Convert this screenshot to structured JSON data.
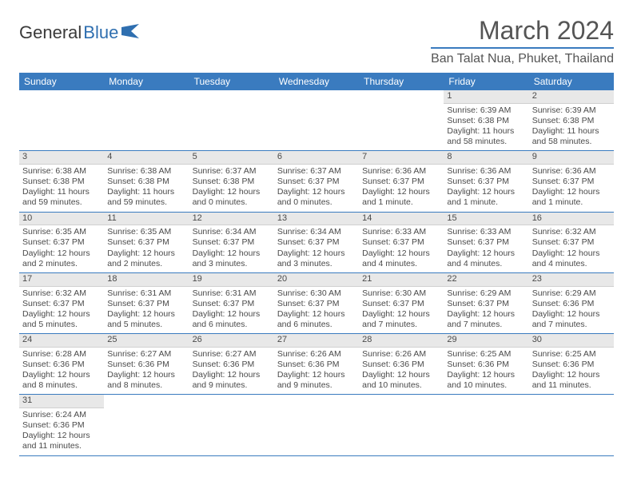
{
  "branding": {
    "word1": "General",
    "word2": "Blue"
  },
  "header": {
    "month_title": "March 2024",
    "location": "Ban Talat Nua, Phuket, Thailand"
  },
  "colors": {
    "header_bar": "#3a7bbf",
    "day_number_bg": "#e8e8e8",
    "text": "#4a4a4a",
    "row_border": "#3a7bbf"
  },
  "weekdays": [
    "Sunday",
    "Monday",
    "Tuesday",
    "Wednesday",
    "Thursday",
    "Friday",
    "Saturday"
  ],
  "weeks": [
    [
      {
        "day": "",
        "sunrise": "",
        "sunset": "",
        "daylight": ""
      },
      {
        "day": "",
        "sunrise": "",
        "sunset": "",
        "daylight": ""
      },
      {
        "day": "",
        "sunrise": "",
        "sunset": "",
        "daylight": ""
      },
      {
        "day": "",
        "sunrise": "",
        "sunset": "",
        "daylight": ""
      },
      {
        "day": "",
        "sunrise": "",
        "sunset": "",
        "daylight": ""
      },
      {
        "day": "1",
        "sunrise": "Sunrise: 6:39 AM",
        "sunset": "Sunset: 6:38 PM",
        "daylight": "Daylight: 11 hours and 58 minutes."
      },
      {
        "day": "2",
        "sunrise": "Sunrise: 6:39 AM",
        "sunset": "Sunset: 6:38 PM",
        "daylight": "Daylight: 11 hours and 58 minutes."
      }
    ],
    [
      {
        "day": "3",
        "sunrise": "Sunrise: 6:38 AM",
        "sunset": "Sunset: 6:38 PM",
        "daylight": "Daylight: 11 hours and 59 minutes."
      },
      {
        "day": "4",
        "sunrise": "Sunrise: 6:38 AM",
        "sunset": "Sunset: 6:38 PM",
        "daylight": "Daylight: 11 hours and 59 minutes."
      },
      {
        "day": "5",
        "sunrise": "Sunrise: 6:37 AM",
        "sunset": "Sunset: 6:38 PM",
        "daylight": "Daylight: 12 hours and 0 minutes."
      },
      {
        "day": "6",
        "sunrise": "Sunrise: 6:37 AM",
        "sunset": "Sunset: 6:37 PM",
        "daylight": "Daylight: 12 hours and 0 minutes."
      },
      {
        "day": "7",
        "sunrise": "Sunrise: 6:36 AM",
        "sunset": "Sunset: 6:37 PM",
        "daylight": "Daylight: 12 hours and 1 minute."
      },
      {
        "day": "8",
        "sunrise": "Sunrise: 6:36 AM",
        "sunset": "Sunset: 6:37 PM",
        "daylight": "Daylight: 12 hours and 1 minute."
      },
      {
        "day": "9",
        "sunrise": "Sunrise: 6:36 AM",
        "sunset": "Sunset: 6:37 PM",
        "daylight": "Daylight: 12 hours and 1 minute."
      }
    ],
    [
      {
        "day": "10",
        "sunrise": "Sunrise: 6:35 AM",
        "sunset": "Sunset: 6:37 PM",
        "daylight": "Daylight: 12 hours and 2 minutes."
      },
      {
        "day": "11",
        "sunrise": "Sunrise: 6:35 AM",
        "sunset": "Sunset: 6:37 PM",
        "daylight": "Daylight: 12 hours and 2 minutes."
      },
      {
        "day": "12",
        "sunrise": "Sunrise: 6:34 AM",
        "sunset": "Sunset: 6:37 PM",
        "daylight": "Daylight: 12 hours and 3 minutes."
      },
      {
        "day": "13",
        "sunrise": "Sunrise: 6:34 AM",
        "sunset": "Sunset: 6:37 PM",
        "daylight": "Daylight: 12 hours and 3 minutes."
      },
      {
        "day": "14",
        "sunrise": "Sunrise: 6:33 AM",
        "sunset": "Sunset: 6:37 PM",
        "daylight": "Daylight: 12 hours and 4 minutes."
      },
      {
        "day": "15",
        "sunrise": "Sunrise: 6:33 AM",
        "sunset": "Sunset: 6:37 PM",
        "daylight": "Daylight: 12 hours and 4 minutes."
      },
      {
        "day": "16",
        "sunrise": "Sunrise: 6:32 AM",
        "sunset": "Sunset: 6:37 PM",
        "daylight": "Daylight: 12 hours and 4 minutes."
      }
    ],
    [
      {
        "day": "17",
        "sunrise": "Sunrise: 6:32 AM",
        "sunset": "Sunset: 6:37 PM",
        "daylight": "Daylight: 12 hours and 5 minutes."
      },
      {
        "day": "18",
        "sunrise": "Sunrise: 6:31 AM",
        "sunset": "Sunset: 6:37 PM",
        "daylight": "Daylight: 12 hours and 5 minutes."
      },
      {
        "day": "19",
        "sunrise": "Sunrise: 6:31 AM",
        "sunset": "Sunset: 6:37 PM",
        "daylight": "Daylight: 12 hours and 6 minutes."
      },
      {
        "day": "20",
        "sunrise": "Sunrise: 6:30 AM",
        "sunset": "Sunset: 6:37 PM",
        "daylight": "Daylight: 12 hours and 6 minutes."
      },
      {
        "day": "21",
        "sunrise": "Sunrise: 6:30 AM",
        "sunset": "Sunset: 6:37 PM",
        "daylight": "Daylight: 12 hours and 7 minutes."
      },
      {
        "day": "22",
        "sunrise": "Sunrise: 6:29 AM",
        "sunset": "Sunset: 6:37 PM",
        "daylight": "Daylight: 12 hours and 7 minutes."
      },
      {
        "day": "23",
        "sunrise": "Sunrise: 6:29 AM",
        "sunset": "Sunset: 6:36 PM",
        "daylight": "Daylight: 12 hours and 7 minutes."
      }
    ],
    [
      {
        "day": "24",
        "sunrise": "Sunrise: 6:28 AM",
        "sunset": "Sunset: 6:36 PM",
        "daylight": "Daylight: 12 hours and 8 minutes."
      },
      {
        "day": "25",
        "sunrise": "Sunrise: 6:27 AM",
        "sunset": "Sunset: 6:36 PM",
        "daylight": "Daylight: 12 hours and 8 minutes."
      },
      {
        "day": "26",
        "sunrise": "Sunrise: 6:27 AM",
        "sunset": "Sunset: 6:36 PM",
        "daylight": "Daylight: 12 hours and 9 minutes."
      },
      {
        "day": "27",
        "sunrise": "Sunrise: 6:26 AM",
        "sunset": "Sunset: 6:36 PM",
        "daylight": "Daylight: 12 hours and 9 minutes."
      },
      {
        "day": "28",
        "sunrise": "Sunrise: 6:26 AM",
        "sunset": "Sunset: 6:36 PM",
        "daylight": "Daylight: 12 hours and 10 minutes."
      },
      {
        "day": "29",
        "sunrise": "Sunrise: 6:25 AM",
        "sunset": "Sunset: 6:36 PM",
        "daylight": "Daylight: 12 hours and 10 minutes."
      },
      {
        "day": "30",
        "sunrise": "Sunrise: 6:25 AM",
        "sunset": "Sunset: 6:36 PM",
        "daylight": "Daylight: 12 hours and 11 minutes."
      }
    ],
    [
      {
        "day": "31",
        "sunrise": "Sunrise: 6:24 AM",
        "sunset": "Sunset: 6:36 PM",
        "daylight": "Daylight: 12 hours and 11 minutes."
      },
      {
        "day": "",
        "sunrise": "",
        "sunset": "",
        "daylight": ""
      },
      {
        "day": "",
        "sunrise": "",
        "sunset": "",
        "daylight": ""
      },
      {
        "day": "",
        "sunrise": "",
        "sunset": "",
        "daylight": ""
      },
      {
        "day": "",
        "sunrise": "",
        "sunset": "",
        "daylight": ""
      },
      {
        "day": "",
        "sunrise": "",
        "sunset": "",
        "daylight": ""
      },
      {
        "day": "",
        "sunrise": "",
        "sunset": "",
        "daylight": ""
      }
    ]
  ]
}
